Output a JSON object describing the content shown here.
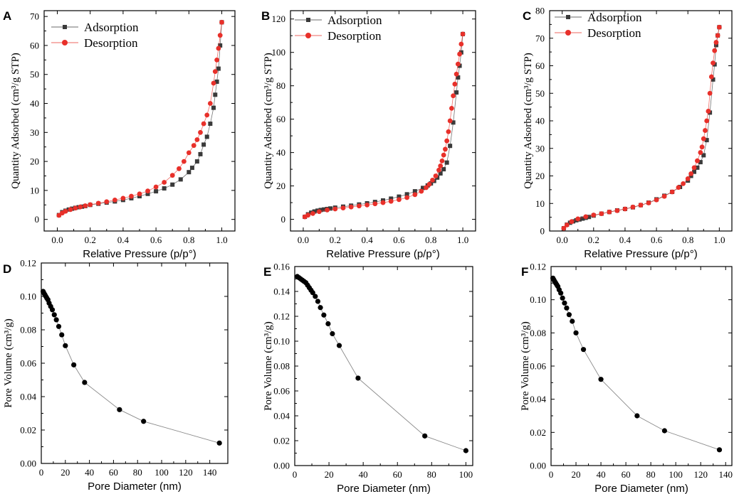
{
  "colors": {
    "adsorption": "#3a3a3a",
    "desorption": "#e8302a",
    "pore": "#000000",
    "pore_line": "#8a8a8a"
  },
  "chart_data": [
    {
      "panel": "A",
      "type": "scatter",
      "xlabel": "Relative Pressure (p/p°)",
      "ylabel": "Quantity Adsorbed (cm³/g STP)",
      "xlim": [
        -0.08,
        1.08
      ],
      "ylim": [
        -4,
        72
      ],
      "xticks": [
        0.0,
        0.2,
        0.4,
        0.6,
        0.8,
        1.0
      ],
      "xtick_labels": [
        "0.0",
        "0.2",
        "0.4",
        "0.6",
        "0.8",
        "1.0"
      ],
      "yticks": [
        0,
        10,
        20,
        30,
        40,
        50,
        60,
        70
      ],
      "ytick_labels": [
        "0",
        "10",
        "20",
        "30",
        "40",
        "50",
        "60",
        "70"
      ],
      "legend": [
        "Adsorption",
        "Desorption"
      ],
      "series": [
        {
          "name": "Adsorption",
          "x": [
            0.01,
            0.03,
            0.05,
            0.07,
            0.09,
            0.11,
            0.13,
            0.15,
            0.17,
            0.2,
            0.25,
            0.3,
            0.35,
            0.4,
            0.45,
            0.5,
            0.55,
            0.6,
            0.65,
            0.7,
            0.75,
            0.8,
            0.82,
            0.85,
            0.87,
            0.89,
            0.91,
            0.93,
            0.95,
            0.96,
            0.97,
            0.98,
            0.99,
            1.0
          ],
          "y": [
            1.5,
            2.5,
            3.0,
            3.4,
            3.7,
            4.0,
            4.2,
            4.4,
            4.6,
            5.0,
            5.4,
            5.8,
            6.2,
            6.7,
            7.3,
            8.0,
            8.8,
            9.7,
            10.7,
            12.0,
            13.8,
            16.3,
            17.8,
            20.0,
            22.5,
            25.8,
            28.5,
            33.0,
            38.5,
            43.0,
            47.5,
            52.0,
            60.0,
            68.0
          ]
        },
        {
          "name": "Desorption",
          "x": [
            1.0,
            0.99,
            0.98,
            0.97,
            0.96,
            0.95,
            0.93,
            0.91,
            0.89,
            0.87,
            0.85,
            0.83,
            0.8,
            0.77,
            0.74,
            0.7,
            0.65,
            0.6,
            0.55,
            0.5,
            0.45,
            0.4,
            0.35,
            0.3,
            0.25,
            0.2,
            0.17,
            0.14,
            0.11,
            0.08,
            0.05,
            0.03,
            0.01
          ],
          "y": [
            68.0,
            63.5,
            59.0,
            55.0,
            51.0,
            47.0,
            40.0,
            36.0,
            33.0,
            30.0,
            27.5,
            25.5,
            23.0,
            20.0,
            17.5,
            15.2,
            12.8,
            11.2,
            9.8,
            8.8,
            8.0,
            7.3,
            6.7,
            6.1,
            5.6,
            5.1,
            4.7,
            4.3,
            3.9,
            3.4,
            2.8,
            2.2,
            1.4
          ]
        }
      ]
    },
    {
      "panel": "B",
      "type": "scatter",
      "xlabel": "Relative Pressure (p/p°)",
      "ylabel": "Quantity Adsorbed (cm³/g STP)",
      "xlim": [
        -0.08,
        1.08
      ],
      "ylim": [
        -7,
        125
      ],
      "xticks": [
        0.0,
        0.2,
        0.4,
        0.6,
        0.8,
        1.0
      ],
      "xtick_labels": [
        "0.0",
        "0.2",
        "0.4",
        "0.6",
        "0.8",
        "1.0"
      ],
      "yticks": [
        0,
        20,
        40,
        60,
        80,
        100,
        120
      ],
      "ytick_labels": [
        "0",
        "20",
        "40",
        "60",
        "80",
        "100",
        "120"
      ],
      "legend": [
        "Adsorption",
        "Desorption"
      ],
      "series": [
        {
          "name": "Adsorption",
          "x": [
            0.01,
            0.03,
            0.05,
            0.07,
            0.09,
            0.11,
            0.13,
            0.15,
            0.17,
            0.2,
            0.25,
            0.3,
            0.35,
            0.4,
            0.45,
            0.5,
            0.55,
            0.6,
            0.65,
            0.7,
            0.75,
            0.78,
            0.8,
            0.82,
            0.84,
            0.86,
            0.88,
            0.9,
            0.92,
            0.94,
            0.96,
            0.97,
            0.98,
            0.99,
            1.0
          ],
          "y": [
            1.5,
            3.0,
            4.0,
            4.7,
            5.2,
            5.6,
            5.9,
            6.2,
            6.5,
            7.0,
            7.6,
            8.2,
            8.9,
            9.6,
            10.4,
            11.3,
            12.4,
            13.6,
            15.0,
            16.8,
            18.8,
            20.3,
            21.5,
            23.0,
            25.0,
            27.5,
            30.0,
            34.0,
            44.0,
            58.0,
            76.0,
            85.0,
            92.0,
            100.0,
            111.0
          ]
        },
        {
          "name": "Desorption",
          "x": [
            1.0,
            0.99,
            0.98,
            0.97,
            0.96,
            0.95,
            0.94,
            0.93,
            0.92,
            0.91,
            0.9,
            0.89,
            0.88,
            0.87,
            0.86,
            0.85,
            0.83,
            0.81,
            0.79,
            0.77,
            0.74,
            0.7,
            0.65,
            0.6,
            0.55,
            0.5,
            0.45,
            0.4,
            0.35,
            0.3,
            0.25,
            0.2,
            0.15,
            0.1,
            0.06,
            0.03,
            0.01
          ],
          "y": [
            111.0,
            105.0,
            99.0,
            93.0,
            87.0,
            81.0,
            74.0,
            66.5,
            59.0,
            52.5,
            47.0,
            42.0,
            38.5,
            35.0,
            32.0,
            29.5,
            26.0,
            23.5,
            21.0,
            19.0,
            16.8,
            14.8,
            13.0,
            11.8,
            10.8,
            10.0,
            9.3,
            8.6,
            8.0,
            7.4,
            6.8,
            6.2,
            5.6,
            4.6,
            3.5,
            2.5,
            1.5
          ]
        }
      ]
    },
    {
      "panel": "C",
      "type": "scatter",
      "xlabel": "Relative Pressure (p/p°)",
      "ylabel": "Quantity Adsorbed (cm³/g STP)",
      "xlim": [
        -0.08,
        1.08
      ],
      "ylim": [
        0,
        80
      ],
      "xticks": [
        0.0,
        0.2,
        0.4,
        0.6,
        0.8,
        1.0
      ],
      "xtick_labels": [
        "0.0",
        "0.2",
        "0.4",
        "0.6",
        "0.8",
        "1.0"
      ],
      "yticks": [
        0,
        10,
        20,
        30,
        40,
        50,
        60,
        70,
        80
      ],
      "ytick_labels": [
        "0",
        "10",
        "20",
        "30",
        "40",
        "50",
        "60",
        "70",
        "80"
      ],
      "legend": [
        "Adsorption",
        "Desorption"
      ],
      "series": [
        {
          "name": "Adsorption",
          "x": [
            0.01,
            0.03,
            0.05,
            0.07,
            0.09,
            0.11,
            0.13,
            0.15,
            0.17,
            0.2,
            0.25,
            0.3,
            0.35,
            0.4,
            0.45,
            0.5,
            0.55,
            0.6,
            0.65,
            0.7,
            0.75,
            0.8,
            0.82,
            0.84,
            0.86,
            0.88,
            0.9,
            0.92,
            0.94,
            0.96,
            0.97,
            0.98,
            0.99,
            1.0
          ],
          "y": [
            1.0,
            2.3,
            3.0,
            3.5,
            3.9,
            4.2,
            4.5,
            4.8,
            5.1,
            5.6,
            6.3,
            6.9,
            7.5,
            8.0,
            8.6,
            9.4,
            10.3,
            11.5,
            12.8,
            14.2,
            16.0,
            18.3,
            20.0,
            21.5,
            23.0,
            25.0,
            27.5,
            33.0,
            43.0,
            55.0,
            60.5,
            67.5,
            71.0,
            74.0
          ]
        },
        {
          "name": "Desorption",
          "x": [
            1.0,
            0.99,
            0.98,
            0.97,
            0.96,
            0.95,
            0.94,
            0.93,
            0.92,
            0.91,
            0.9,
            0.89,
            0.88,
            0.86,
            0.84,
            0.82,
            0.8,
            0.77,
            0.74,
            0.7,
            0.65,
            0.6,
            0.55,
            0.5,
            0.45,
            0.4,
            0.35,
            0.3,
            0.25,
            0.2,
            0.15,
            0.1,
            0.06,
            0.03,
            0.01
          ],
          "y": [
            74.0,
            71.0,
            68.5,
            65.5,
            61.0,
            56.0,
            50.0,
            43.5,
            40.0,
            36.5,
            33.5,
            30.5,
            28.5,
            25.5,
            23.0,
            20.8,
            19.0,
            17.2,
            15.8,
            14.2,
            12.6,
            11.3,
            10.2,
            9.4,
            8.7,
            8.0,
            7.4,
            6.9,
            6.3,
            5.8,
            5.2,
            4.4,
            3.4,
            2.2,
            1.0
          ]
        }
      ]
    },
    {
      "panel": "D",
      "type": "line",
      "xlabel": "Pore Diameter (nm)",
      "ylabel": "Pore Volume (cm³/g)",
      "xlim": [
        0,
        155
      ],
      "ylim": [
        0,
        0.12
      ],
      "xticks": [
        0,
        20,
        40,
        60,
        80,
        100,
        120,
        140
      ],
      "xtick_labels": [
        "0",
        "20",
        "40",
        "60",
        "80",
        "100",
        "120",
        "140"
      ],
      "yticks": [
        0,
        0.02,
        0.04,
        0.06,
        0.08,
        0.1,
        0.12
      ],
      "ytick_labels": [
        "0.00",
        "0.02",
        "0.04",
        "0.06",
        "0.08",
        "0.10",
        "0.12"
      ],
      "series": [
        {
          "name": "Pore Volume",
          "x": [
            1.5,
            2.2,
            3.0,
            3.8,
            4.6,
            5.5,
            6.5,
            7.8,
            9.2,
            10.8,
            12.5,
            14.5,
            17.0,
            20.0,
            27.0,
            36.0,
            65.0,
            85.0,
            148.0
          ],
          "y": [
            0.103,
            0.102,
            0.101,
            0.1,
            0.099,
            0.098,
            0.096,
            0.094,
            0.092,
            0.089,
            0.086,
            0.082,
            0.077,
            0.0705,
            0.059,
            0.0485,
            0.0322,
            0.0252,
            0.0122
          ]
        }
      ]
    },
    {
      "panel": "E",
      "type": "line",
      "xlabel": "Pore Diameter (nm)",
      "ylabel": "Pore Volume (cm³/g)",
      "xlim": [
        0,
        104
      ],
      "ylim": [
        0,
        0.16
      ],
      "xticks": [
        0,
        20,
        40,
        60,
        80,
        100
      ],
      "xtick_labels": [
        "0",
        "20",
        "40",
        "60",
        "80",
        "100"
      ],
      "yticks": [
        0,
        0.02,
        0.04,
        0.06,
        0.08,
        0.1,
        0.12,
        0.14,
        0.16
      ],
      "ytick_labels": [
        "0.00",
        "0.02",
        "0.04",
        "0.06",
        "0.08",
        "0.10",
        "0.12",
        "0.14",
        "0.16"
      ],
      "series": [
        {
          "name": "Pore Volume",
          "x": [
            1.5,
            2.5,
            3.5,
            4.5,
            5.5,
            6.5,
            7.5,
            8.5,
            9.5,
            10.5,
            12.0,
            13.5,
            15.0,
            17.0,
            19.5,
            22.0,
            26.0,
            37.0,
            76.0,
            100.0
          ],
          "y": [
            0.152,
            0.151,
            0.15,
            0.149,
            0.148,
            0.147,
            0.145,
            0.143,
            0.141,
            0.139,
            0.136,
            0.132,
            0.127,
            0.121,
            0.114,
            0.106,
            0.0965,
            0.0703,
            0.0238,
            0.012
          ]
        }
      ]
    },
    {
      "panel": "F",
      "type": "line",
      "xlabel": "Pore Diameter (nm)",
      "ylabel": "Pore Volume (cm³/g)",
      "xlim": [
        0,
        145
      ],
      "ylim": [
        0,
        0.12
      ],
      "xticks": [
        0,
        20,
        40,
        60,
        80,
        100,
        120,
        140
      ],
      "xtick_labels": [
        "0",
        "20",
        "40",
        "60",
        "80",
        "100",
        "120",
        "140"
      ],
      "yticks": [
        0,
        0.02,
        0.04,
        0.06,
        0.08,
        0.1,
        0.12
      ],
      "ytick_labels": [
        "0.00",
        "0.02",
        "0.04",
        "0.06",
        "0.08",
        "0.10",
        "0.12"
      ],
      "series": [
        {
          "name": "Pore Volume",
          "x": [
            1.5,
            2.2,
            3.0,
            3.8,
            4.6,
            5.5,
            6.5,
            7.8,
            9.2,
            10.8,
            12.5,
            14.5,
            17.0,
            20.0,
            26.0,
            40.0,
            69.0,
            91.0,
            135.0
          ],
          "y": [
            0.113,
            0.112,
            0.111,
            0.11,
            0.109,
            0.108,
            0.106,
            0.104,
            0.101,
            0.098,
            0.095,
            0.091,
            0.087,
            0.08,
            0.07,
            0.052,
            0.03,
            0.021,
            0.0095
          ]
        }
      ]
    }
  ]
}
